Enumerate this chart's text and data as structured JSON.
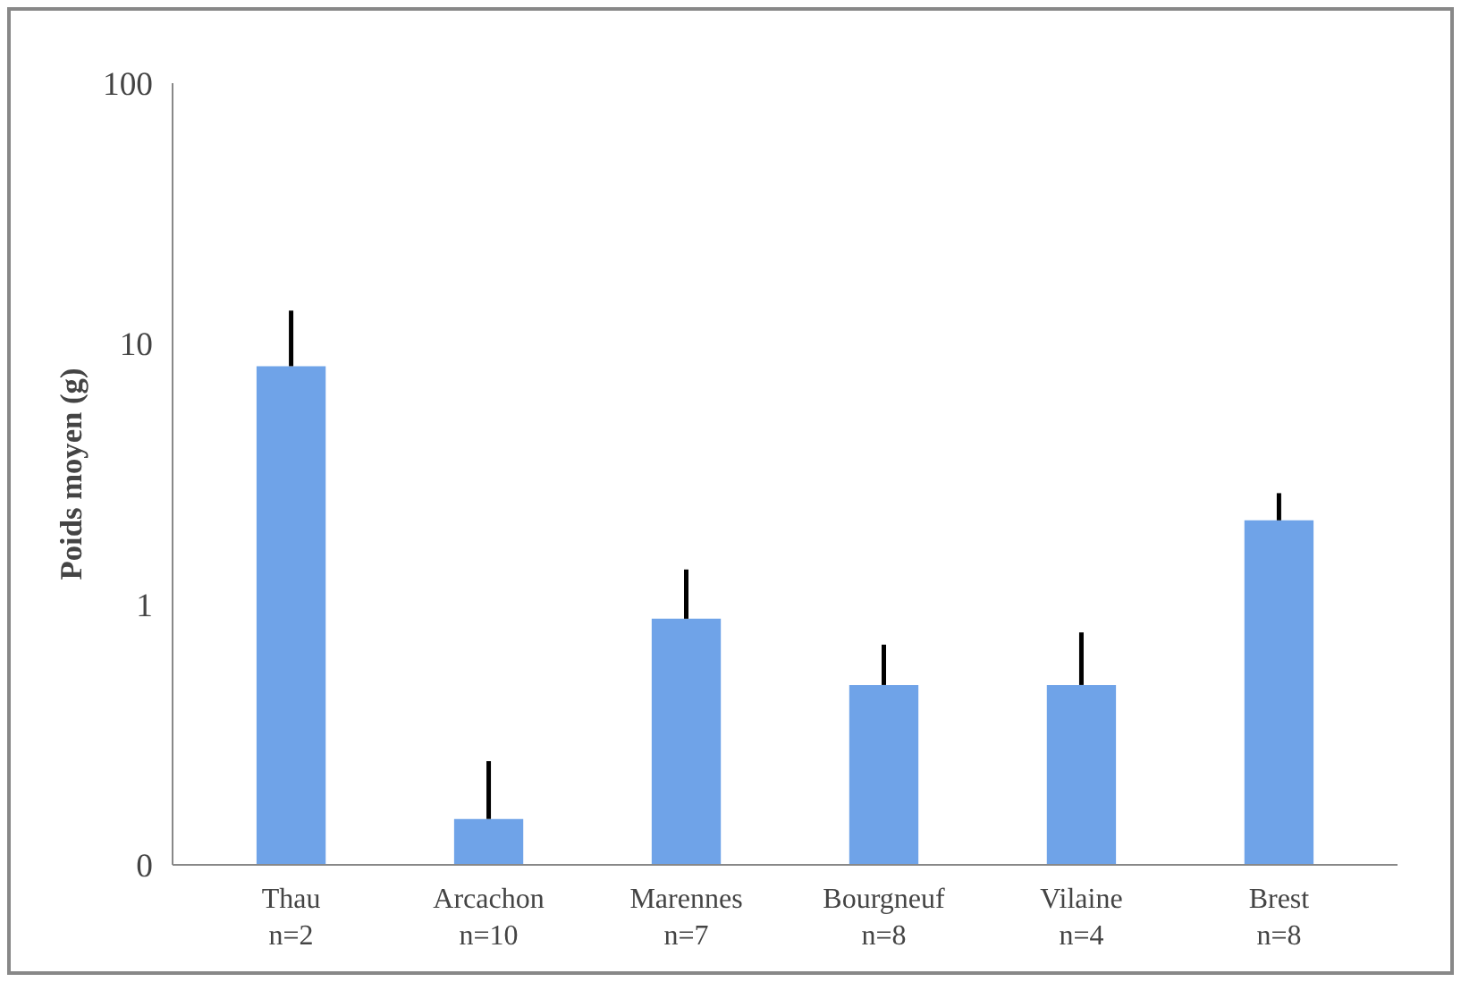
{
  "chart_data": {
    "type": "bar",
    "ylabel": "Poids moyen (g)",
    "categories": [
      "Thau\nn=2",
      "Arcachon\nn=10",
      "Marennes\nn=7",
      "Bourgneuf\nn=8",
      "Vilaine\nn=4",
      "Brest\nn=8"
    ],
    "values": [
      8.2,
      0.15,
      0.88,
      0.49,
      0.49,
      2.1
    ],
    "errors": [
      [
        8.2,
        13.4
      ],
      [
        0.15,
        0.25
      ],
      [
        0.88,
        1.36
      ],
      [
        0.49,
        0.7
      ],
      [
        0.49,
        0.78
      ],
      [
        2.1,
        2.67
      ]
    ],
    "color": "#6fa3e8",
    "log": "y",
    "ylim": [
      0.1,
      100
    ],
    "yticks": [
      {
        "value": 0.1,
        "label": "0"
      },
      1,
      10,
      100
    ],
    "grid": false
  }
}
